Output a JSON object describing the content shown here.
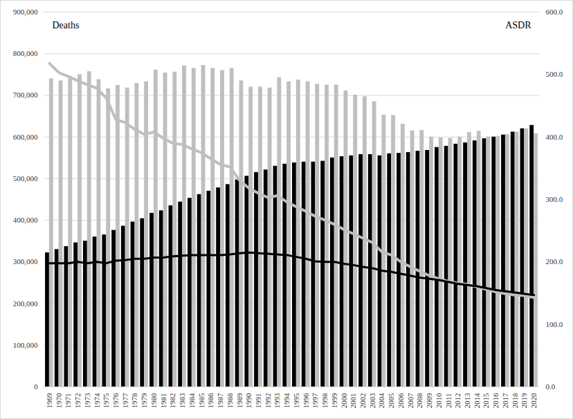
{
  "chart_data": {
    "type": "bar",
    "ylabel": "Deaths",
    "y2label": "ASDR",
    "categories": [
      "1969",
      "1970",
      "1971",
      "1972",
      "1973",
      "1974",
      "1975",
      "1976",
      "1977",
      "1978",
      "1979",
      "1980",
      "1981",
      "1982",
      "1983",
      "1984",
      "1985",
      "1986",
      "1987",
      "1988",
      "1989",
      "1990",
      "1991",
      "1992",
      "1993",
      "1994",
      "1995",
      "1996",
      "1997",
      "1998",
      "1999",
      "2000",
      "2001",
      "2002",
      "2003",
      "2004",
      "2005",
      "2006",
      "2007",
      "2008",
      "2009",
      "2010",
      "2011",
      "2012",
      "2013",
      "2014",
      "2015",
      "2016",
      "2017",
      "2018",
      "2019",
      "2020"
    ],
    "series": [
      {
        "color": "#000000",
        "values": [
          322000,
          330000,
          337000,
          346000,
          350000,
          360000,
          365000,
          376000,
          386000,
          396000,
          404000,
          417000,
          423000,
          435000,
          444000,
          453000,
          462000,
          470000,
          478000,
          486000,
          497000,
          506000,
          515000,
          521000,
          530000,
          535000,
          538000,
          540000,
          540000,
          542000,
          550000,
          553000,
          555000,
          558000,
          558000,
          555000,
          560000,
          561000,
          563000,
          566000,
          568000,
          575000,
          578000,
          583000,
          586000,
          591000,
          596000,
          600000,
          605000,
          612000,
          620000,
          628000
        ]
      },
      {
        "color": "#bfbfbf",
        "values": [
          740000,
          735000,
          740000,
          750000,
          757000,
          738000,
          716000,
          724000,
          718000,
          729000,
          733000,
          761000,
          754000,
          756000,
          771000,
          765000,
          772000,
          765000,
          760000,
          765000,
          735000,
          720000,
          720000,
          718000,
          743000,
          733000,
          737000,
          733000,
          727000,
          725000,
          725000,
          711000,
          701000,
          697000,
          685000,
          653000,
          652000,
          631000,
          615000,
          616000,
          600000,
          598000,
          597000,
          600000,
          611000,
          614000,
          600000,
          601000,
          606000,
          612000,
          620000,
          608000
        ]
      },
      {
        "type": "line",
        "axis": "y2",
        "color": "#bfbfbf",
        "values": [
          518,
          503,
          497,
          490,
          484,
          478,
          462,
          428,
          423,
          412,
          404,
          408,
          398,
          390,
          388,
          381,
          375,
          365,
          356,
          352,
          331,
          318,
          310,
          303,
          306,
          296,
          288,
          281,
          273,
          267,
          260,
          252,
          245,
          238,
          231,
          216,
          211,
          200,
          192,
          185,
          178,
          173,
          169,
          166,
          164,
          160,
          156,
          152,
          149,
          147,
          146,
          143
        ]
      },
      {
        "type": "line",
        "axis": "y2",
        "color": "#000000",
        "values": [
          198,
          198,
          198,
          200,
          198,
          200,
          198,
          202,
          203,
          205,
          205,
          207,
          207,
          209,
          210,
          211,
          211,
          211,
          211,
          212,
          214,
          215,
          214,
          213,
          212,
          211,
          208,
          205,
          201,
          200,
          200,
          197,
          195,
          192,
          190,
          186,
          184,
          181,
          178,
          175,
          173,
          171,
          168,
          165,
          163,
          161,
          158,
          155,
          153,
          151,
          149,
          147
        ]
      }
    ],
    "ylim": [
      0,
      900000
    ],
    "yticks": [
      0,
      {
        "value": 100000,
        "label": "100,000"
      },
      {
        "value": 200000,
        "label": "200,000"
      },
      {
        "value": 300000,
        "label": "300,000"
      },
      {
        "value": 400000,
        "label": "400,000"
      },
      {
        "value": 500000,
        "label": "500,000"
      },
      {
        "value": 600000,
        "label": "600,000"
      },
      {
        "value": 700000,
        "label": "700,000"
      },
      {
        "value": 800000,
        "label": "800,000"
      },
      {
        "value": 900000,
        "label": "900,000"
      }
    ],
    "y2lim": [
      0,
      600
    ],
    "y2ticks": [
      {
        "value": 0,
        "label": "0.0"
      },
      {
        "value": 100,
        "label": "100.0"
      },
      {
        "value": 200,
        "label": "200.0"
      },
      {
        "value": 300,
        "label": "300.0"
      },
      {
        "value": 400,
        "label": "400.0"
      },
      {
        "value": 500,
        "label": "500.0"
      },
      {
        "value": 600,
        "label": "600.0"
      }
    ],
    "grid": true
  }
}
